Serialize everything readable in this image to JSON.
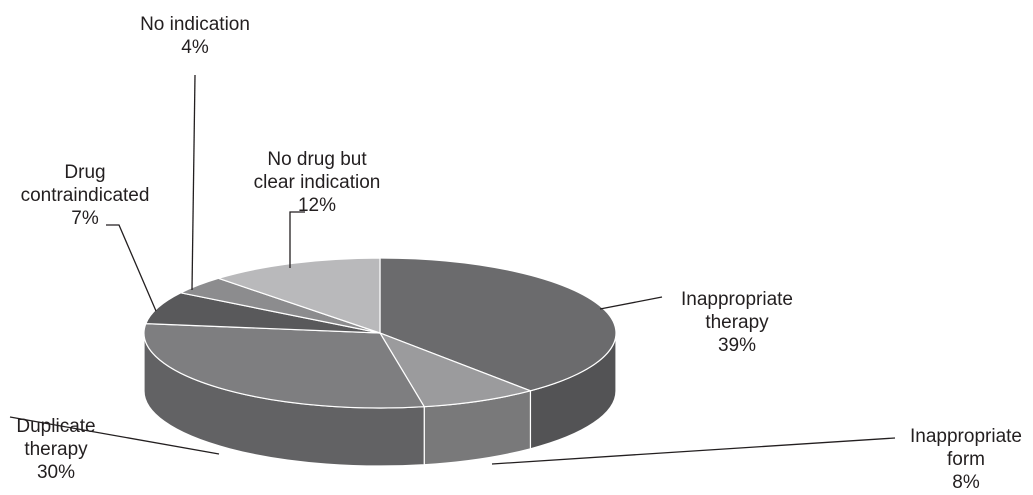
{
  "chart_data": {
    "type": "pie",
    "style": "3d",
    "title": "",
    "slices": [
      {
        "label_lines": [
          "Inappropriate",
          "therapy"
        ],
        "value_label": "39%",
        "value": 39,
        "color": "#6b6b6d"
      },
      {
        "label_lines": [
          "Inappropriate",
          "form"
        ],
        "value_label": "8%",
        "value": 8,
        "color": "#9b9b9d"
      },
      {
        "label_lines": [
          "Duplicate",
          "therapy"
        ],
        "value_label": "30%",
        "value": 30,
        "color": "#7e7e80"
      },
      {
        "label_lines": [
          "Drug",
          "contraindicated"
        ],
        "value_label": "7%",
        "value": 7,
        "color": "#59595b"
      },
      {
        "label_lines": [
          "No indication"
        ],
        "value_label": "4%",
        "value": 4,
        "color": "#8c8c8e"
      },
      {
        "label_lines": [
          "No drug but",
          "clear indication"
        ],
        "value_label": "12%",
        "value": 12,
        "color": "#b9b9bb"
      }
    ]
  }
}
